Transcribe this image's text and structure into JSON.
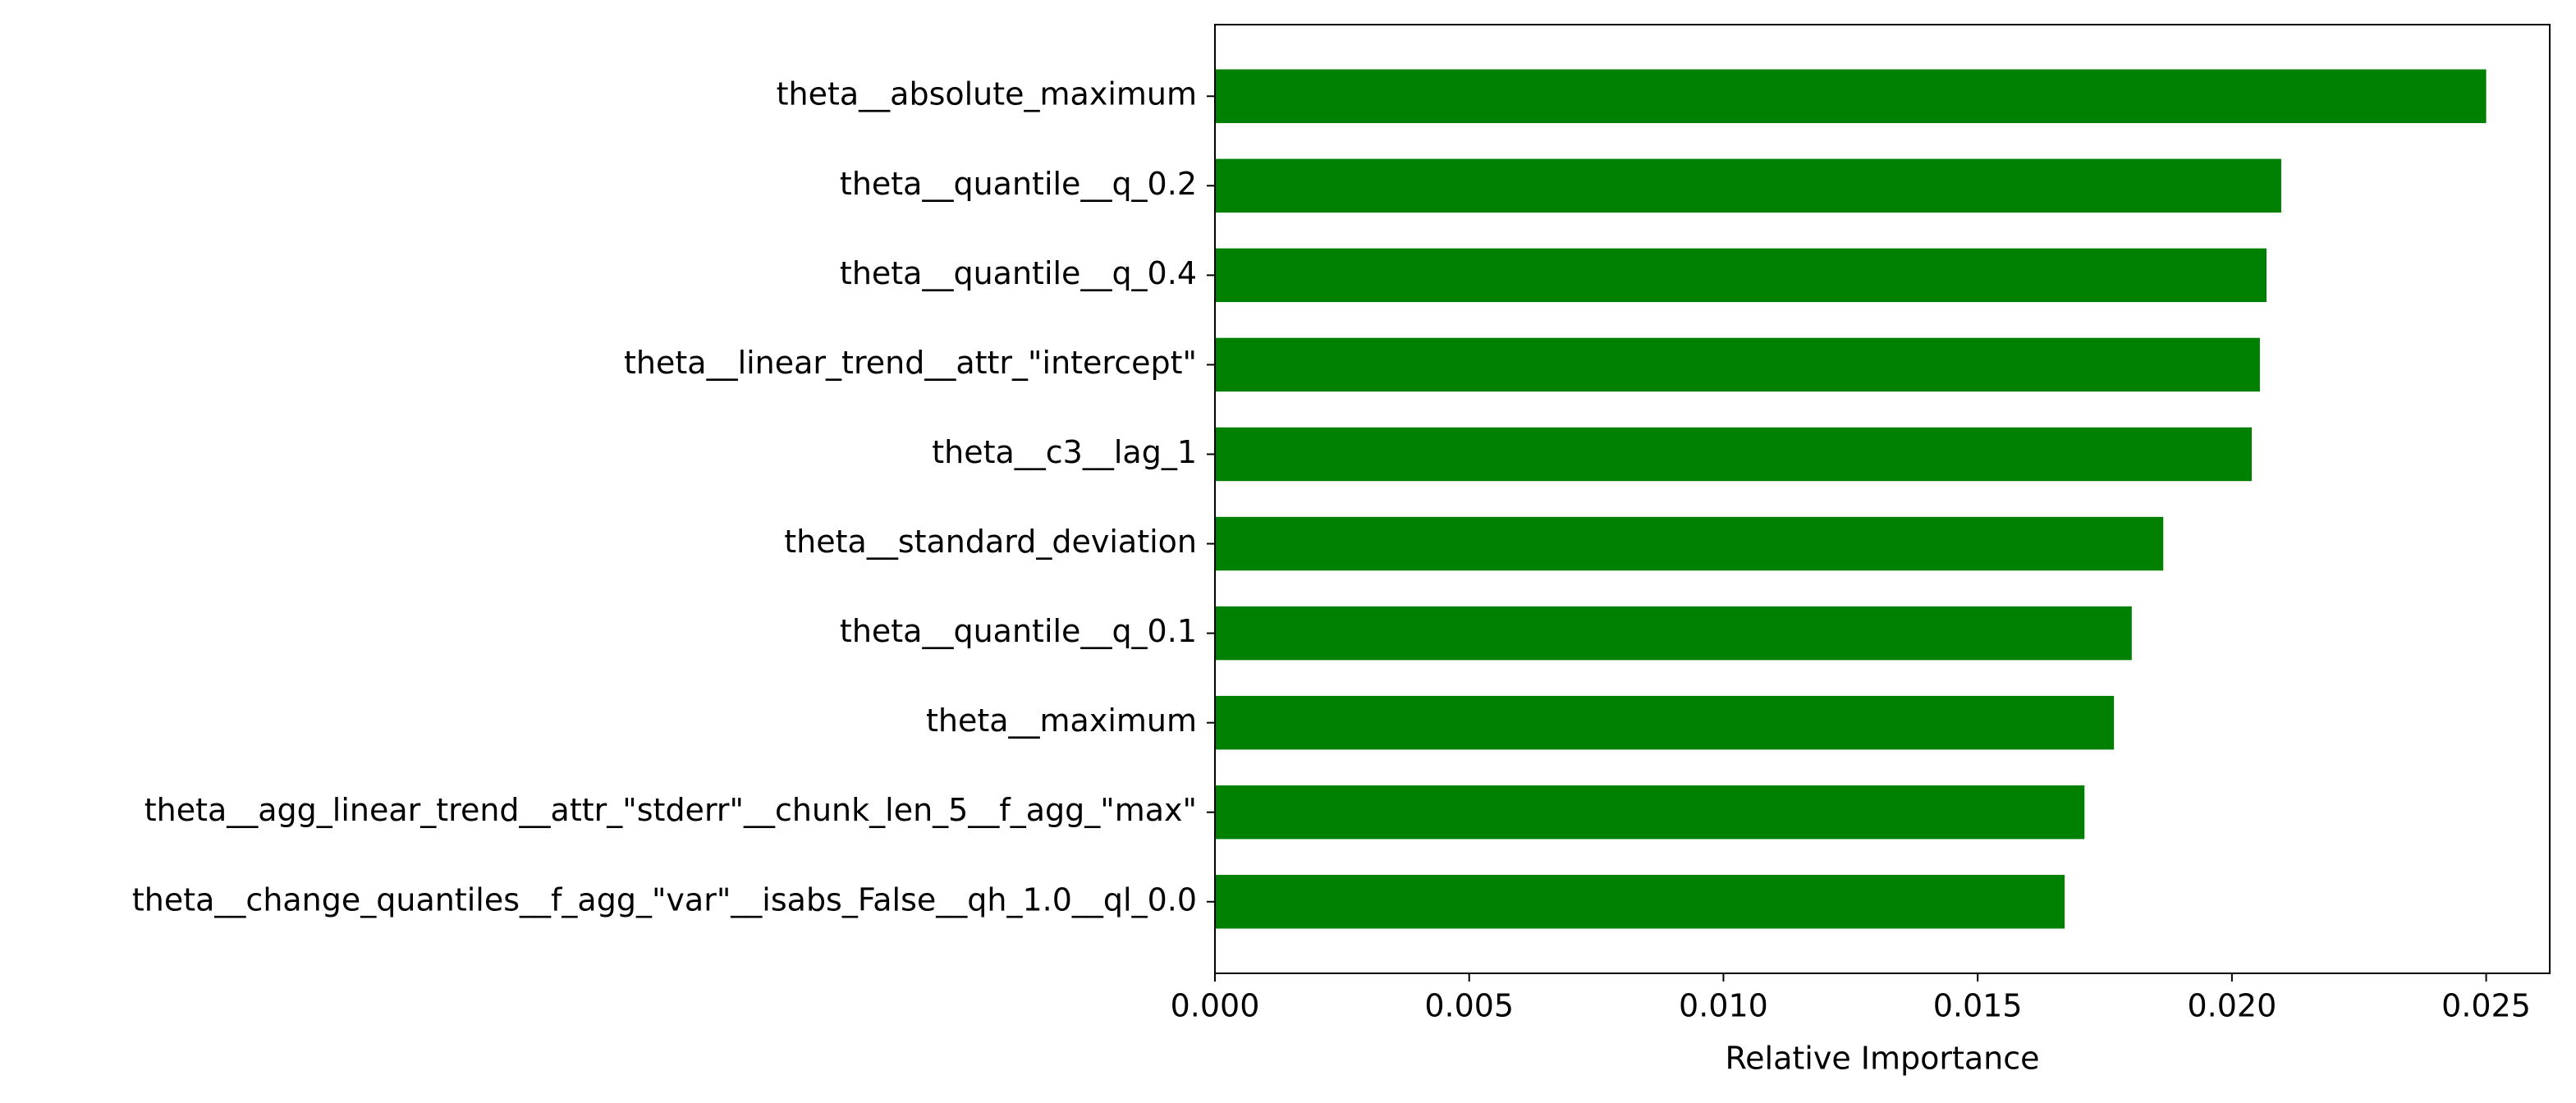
{
  "chart_data": {
    "type": "barh",
    "xlabel": "Relative Importance",
    "categories": [
      "theta__absolute_maximum",
      "theta__quantile__q_0.2",
      "theta__quantile__q_0.4",
      "theta__linear_trend__attr_\"intercept\"",
      "theta__c3__lag_1",
      "theta__standard_deviation",
      "theta__quantile__q_0.1",
      "theta__maximum",
      "theta__agg_linear_trend__attr_\"stderr\"__chunk_len_5__f_agg_\"max\"",
      "theta__change_quantiles__f_agg_\"var\"__isabs_False__qh_1.0__ql_0.0"
    ],
    "values": [
      0.025,
      0.02097,
      0.02068,
      0.02055,
      0.02039,
      0.01865,
      0.01803,
      0.01768,
      0.0171,
      0.01671
    ],
    "color": "#008000",
    "xlim": [
      0,
      0.02625
    ],
    "xticks": [
      {
        "value": 0,
        "label": "0.000"
      },
      {
        "value": 0.005,
        "label": "0.005"
      },
      {
        "value": 0.01,
        "label": "0.010"
      },
      {
        "value": 0.015,
        "label": "0.015"
      },
      {
        "value": 0.02,
        "label": "0.020"
      },
      {
        "value": 0.025,
        "label": "0.025"
      }
    ]
  }
}
